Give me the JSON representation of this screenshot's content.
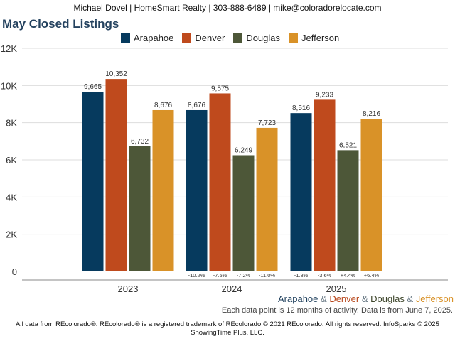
{
  "header": {
    "contact": "Michael Dovel | HomeSmart Realty | 303-888-6489 | mike@coloradorelocate.com"
  },
  "title": "May Closed Listings",
  "county_line": [
    {
      "text": "Arapahoe",
      "color": "#1e3f5c"
    },
    {
      "text": " & ",
      "color": "#6a7a86"
    },
    {
      "text": "Denver",
      "color": "#b94a1f"
    },
    {
      "text": " & ",
      "color": "#6a7a86"
    },
    {
      "text": "Douglas",
      "color": "#3c4429"
    },
    {
      "text": " & ",
      "color": "#6a7a86"
    },
    {
      "text": "Jefferson",
      "color": "#d99228"
    }
  ],
  "note": "Each data point is 12 months of activity. Data is from June 7, 2025.",
  "footer": {
    "line1": "All data from REcolorado®. REcolorado® is a registered trademark of REcolorado © 2021 REcolorado. All rights reserved. InfoSparks © 2025",
    "line2": "ShowingTime Plus, LLC."
  },
  "chart_data": {
    "type": "bar",
    "title": "May Closed Listings",
    "categories": [
      "2023",
      "2024",
      "2025"
    ],
    "y_ticks": [
      "0",
      "2K",
      "4K",
      "6K",
      "8K",
      "10K",
      "12K"
    ],
    "ylim": [
      0,
      12000
    ],
    "grid": true,
    "legend_position": "top",
    "series": [
      {
        "name": "Arapahoe",
        "color": "#063a5e",
        "values": [
          9665,
          8676,
          8516
        ],
        "value_labels": [
          "9,665",
          "8,676",
          "8,516"
        ],
        "pct_change": [
          "",
          "-10.2%",
          "-1.8%"
        ]
      },
      {
        "name": "Denver",
        "color": "#bf4a1d",
        "values": [
          10352,
          9575,
          9233
        ],
        "value_labels": [
          "10,352",
          "9,575",
          "9,233"
        ],
        "pct_change": [
          "",
          "-7.5%",
          "-3.6%"
        ]
      },
      {
        "name": "Douglas",
        "color": "#4d5738",
        "values": [
          6732,
          6249,
          6521
        ],
        "value_labels": [
          "6,732",
          "6,249",
          "6,521"
        ],
        "pct_change": [
          "",
          "-7.2%",
          "+4.4%"
        ]
      },
      {
        "name": "Jefferson",
        "color": "#d99228",
        "values": [
          8676,
          7723,
          8216
        ],
        "value_labels": [
          "8,676",
          "7,723",
          "8,216"
        ],
        "pct_change": [
          "",
          "-11.0%",
          "+6.4%"
        ]
      }
    ]
  }
}
